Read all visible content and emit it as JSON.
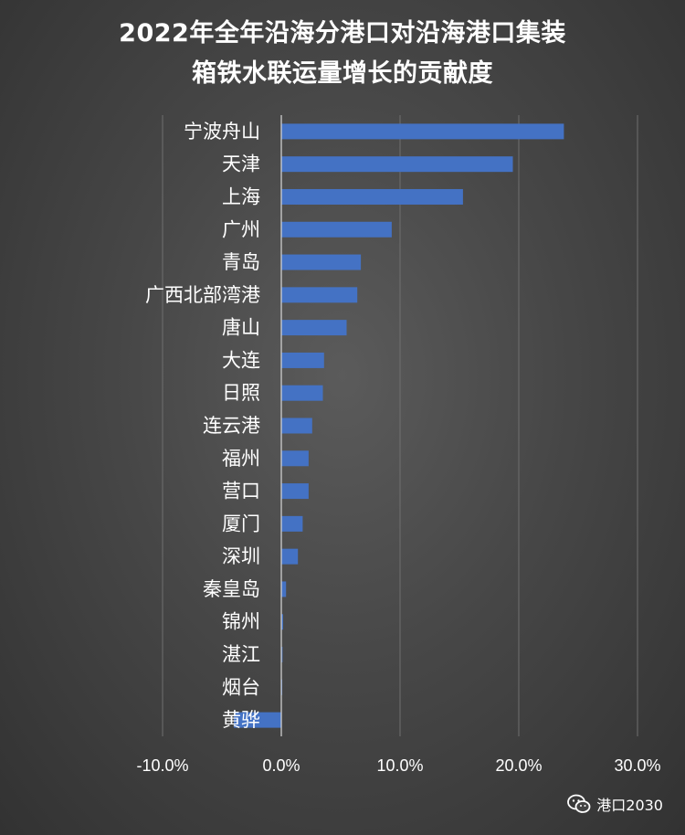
{
  "chart_data": {
    "type": "bar",
    "orientation": "horizontal",
    "title_lines": [
      "2022年全年沿海分港口对沿海港口集装",
      "箱铁水联运量增长的贡献度"
    ],
    "categories": [
      "宁波舟山",
      "天津",
      "上海",
      "广州",
      "青岛",
      "广西北部湾港",
      "唐山",
      "大连",
      "日照",
      "连云港",
      "福州",
      "营口",
      "厦门",
      "深圳",
      "秦皇岛",
      "锦州",
      "湛江",
      "烟台",
      "黄骅"
    ],
    "values": [
      23.8,
      19.5,
      15.3,
      9.3,
      6.7,
      6.4,
      5.5,
      3.6,
      3.5,
      2.6,
      2.3,
      2.3,
      1.8,
      1.4,
      0.4,
      0.15,
      0.1,
      0.05,
      -4.0
    ],
    "xlim": [
      -10,
      30
    ],
    "x_ticks": [
      -10,
      0,
      10,
      20,
      30
    ],
    "x_tick_labels": [
      "-10.0%",
      "0.0%",
      "10.0%",
      "20.0%",
      "30.0%"
    ],
    "grid": "vertical",
    "bar_color": "#4472c4",
    "watermark": "港口2030",
    "watermark_icon": "wechat-icon"
  }
}
